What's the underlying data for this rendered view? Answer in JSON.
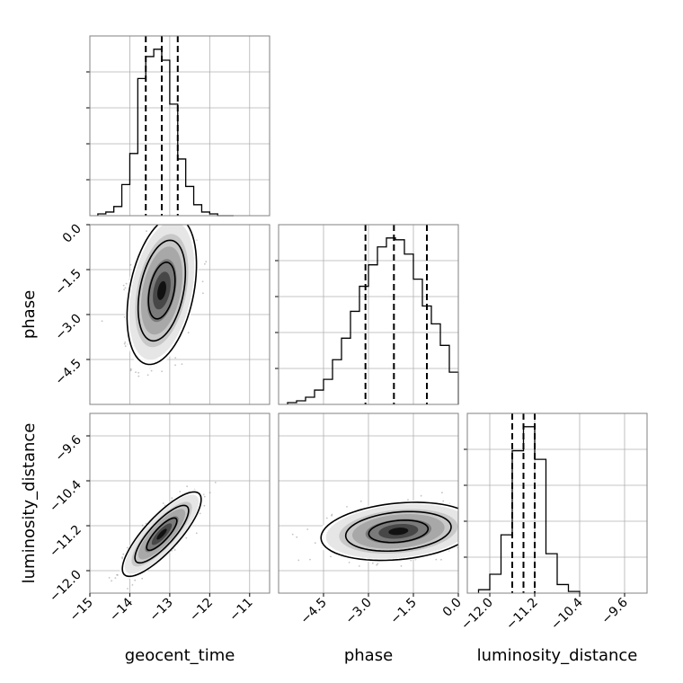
{
  "chart_data": {
    "type": "corner",
    "parameters": [
      "geocent_time",
      "phase",
      "luminosity_distance"
    ],
    "diagonal": [
      {
        "parameter": "geocent_time",
        "type": "histogram",
        "xlim": [
          -15,
          -10.5
        ],
        "bin_edges": [
          -14.8,
          -14.6,
          -14.4,
          -14.2,
          -14.0,
          -13.8,
          -13.6,
          -13.4,
          -13.2,
          -13.0,
          -12.8,
          -12.6,
          -12.4,
          -12.2,
          -12.0,
          -11.8,
          -11.6,
          -11.4
        ],
        "counts": [
          1,
          2,
          5,
          17,
          34,
          75,
          87,
          91,
          85,
          61,
          31,
          16,
          6,
          2,
          1,
          0,
          0
        ],
        "quantiles": [
          -13.6,
          -13.2,
          -12.8
        ]
      },
      {
        "parameter": "phase",
        "type": "histogram",
        "xlim": [
          -6.0,
          0.0
        ],
        "bin_edges": [
          -5.7,
          -5.4,
          -5.1,
          -4.8,
          -4.5,
          -4.2,
          -3.9,
          -3.6,
          -3.3,
          -3.0,
          -2.7,
          -2.4,
          -2.1,
          -1.8,
          -1.5,
          -1.2,
          -0.9,
          -0.6,
          -0.3,
          0.0
        ],
        "counts": [
          1,
          2,
          4,
          8,
          14,
          25,
          37,
          52,
          66,
          78,
          88,
          93,
          92,
          84,
          70,
          55,
          45,
          33,
          18
        ],
        "quantiles": [
          -3.1,
          -2.15,
          -1.05
        ]
      },
      {
        "parameter": "luminosity_distance",
        "type": "histogram",
        "xlim": [
          -12.4,
          -9.2
        ],
        "bin_edges": [
          -12.2,
          -12.0,
          -11.8,
          -11.6,
          -11.4,
          -11.2,
          -11.0,
          -10.8,
          -10.6,
          -10.4
        ],
        "counts": [
          2,
          11,
          34,
          83,
          97,
          78,
          23,
          5,
          1
        ],
        "quantiles": [
          -11.6,
          -11.4,
          -11.2
        ]
      }
    ],
    "panels_2d": [
      {
        "x": "geocent_time",
        "y": "phase",
        "xlim": [
          -15,
          -10.5
        ],
        "ylim": [
          -6.0,
          0.0
        ],
        "center": [
          -13.2,
          -2.2
        ],
        "sigma": [
          0.37,
          1.05
        ],
        "correlation": 0.35
      },
      {
        "x": "geocent_time",
        "y": "luminosity_distance",
        "xlim": [
          -15,
          -10.5
        ],
        "ylim": [
          -12.4,
          -9.2
        ],
        "center": [
          -13.2,
          -11.35
        ],
        "sigma": [
          0.42,
          0.32
        ],
        "correlation": 0.82
      },
      {
        "x": "phase",
        "y": "luminosity_distance",
        "xlim": [
          -6.0,
          0.0
        ],
        "ylim": [
          -12.4,
          -9.2
        ],
        "center": [
          -2.0,
          -11.3
        ],
        "sigma": [
          1.1,
          0.22
        ],
        "correlation": 0.22
      }
    ],
    "axes": {
      "geocent_time": {
        "label": "geocent_time",
        "ticks": [
          -15,
          -14,
          -13,
          -12,
          -11
        ],
        "tick_labels": [
          "−15",
          "−14",
          "−13",
          "−12",
          "−11"
        ]
      },
      "phase": {
        "label": "phase",
        "ticks": [
          -4.5,
          -3.0,
          -1.5,
          0.0
        ],
        "tick_labels": [
          "−4.5",
          "−3.0",
          "−1.5",
          "0.0"
        ]
      },
      "luminosity_distance": {
        "label": "luminosity_distance",
        "ticks": [
          -12.0,
          -11.2,
          -10.4,
          -9.6
        ],
        "tick_labels": [
          "−12.0",
          "−11.2",
          "−10.4",
          "−9.6"
        ]
      }
    },
    "grid": true,
    "contour_levels": 3
  }
}
